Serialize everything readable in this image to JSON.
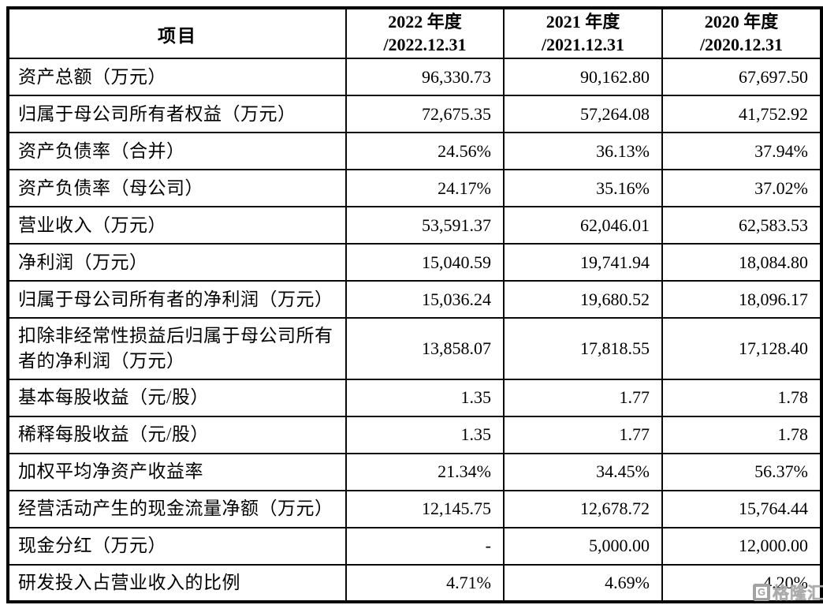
{
  "table": {
    "header": {
      "item_label": "项目",
      "year_columns": [
        {
          "year": "2022",
          "line1": "2022 年度",
          "line2": "/2022.12.31"
        },
        {
          "year": "2021",
          "line1": "2021 年度",
          "line2": "/2021.12.31"
        },
        {
          "year": "2020",
          "line1": "2020 年度",
          "line2": "/2020.12.31"
        }
      ]
    },
    "rows": [
      {
        "label": "资产总额（万元）",
        "values": [
          "96,330.73",
          "90,162.80",
          "67,697.50"
        ]
      },
      {
        "label": "归属于母公司所有者权益（万元）",
        "values": [
          "72,675.35",
          "57,264.08",
          "41,752.92"
        ]
      },
      {
        "label": "资产负债率（合并）",
        "values": [
          "24.56%",
          "36.13%",
          "37.94%"
        ]
      },
      {
        "label": "资产负债率（母公司）",
        "values": [
          "24.17%",
          "35.16%",
          "37.02%"
        ]
      },
      {
        "label": "营业收入（万元）",
        "values": [
          "53,591.37",
          "62,046.01",
          "62,583.53"
        ]
      },
      {
        "label": "净利润（万元）",
        "values": [
          "15,040.59",
          "19,741.94",
          "18,084.80"
        ]
      },
      {
        "label": "归属于母公司所有者的净利润（万元）",
        "values": [
          "15,036.24",
          "19,680.52",
          "18,096.17"
        ]
      },
      {
        "label": "扣除非经常性损益后归属于母公司所有者的净利润（万元）",
        "values": [
          "13,858.07",
          "17,818.55",
          "17,128.40"
        ]
      },
      {
        "label": "基本每股收益（元/股）",
        "values": [
          "1.35",
          "1.77",
          "1.78"
        ]
      },
      {
        "label": "稀释每股收益（元/股）",
        "values": [
          "1.35",
          "1.77",
          "1.78"
        ]
      },
      {
        "label": "加权平均净资产收益率",
        "values": [
          "21.34%",
          "34.45%",
          "56.37%"
        ]
      },
      {
        "label": "经营活动产生的现金流量净额（万元）",
        "values": [
          "12,145.75",
          "12,678.72",
          "15,764.44"
        ]
      },
      {
        "label": "现金分红（万元）",
        "values": [
          "-",
          "5,000.00",
          "12,000.00"
        ]
      },
      {
        "label": "研发投入占营业收入的比例",
        "values": [
          "4.71%",
          "4.69%",
          "4.20%"
        ]
      }
    ]
  },
  "watermark": {
    "logo_glyph": "G",
    "brand": "格隆汇"
  }
}
